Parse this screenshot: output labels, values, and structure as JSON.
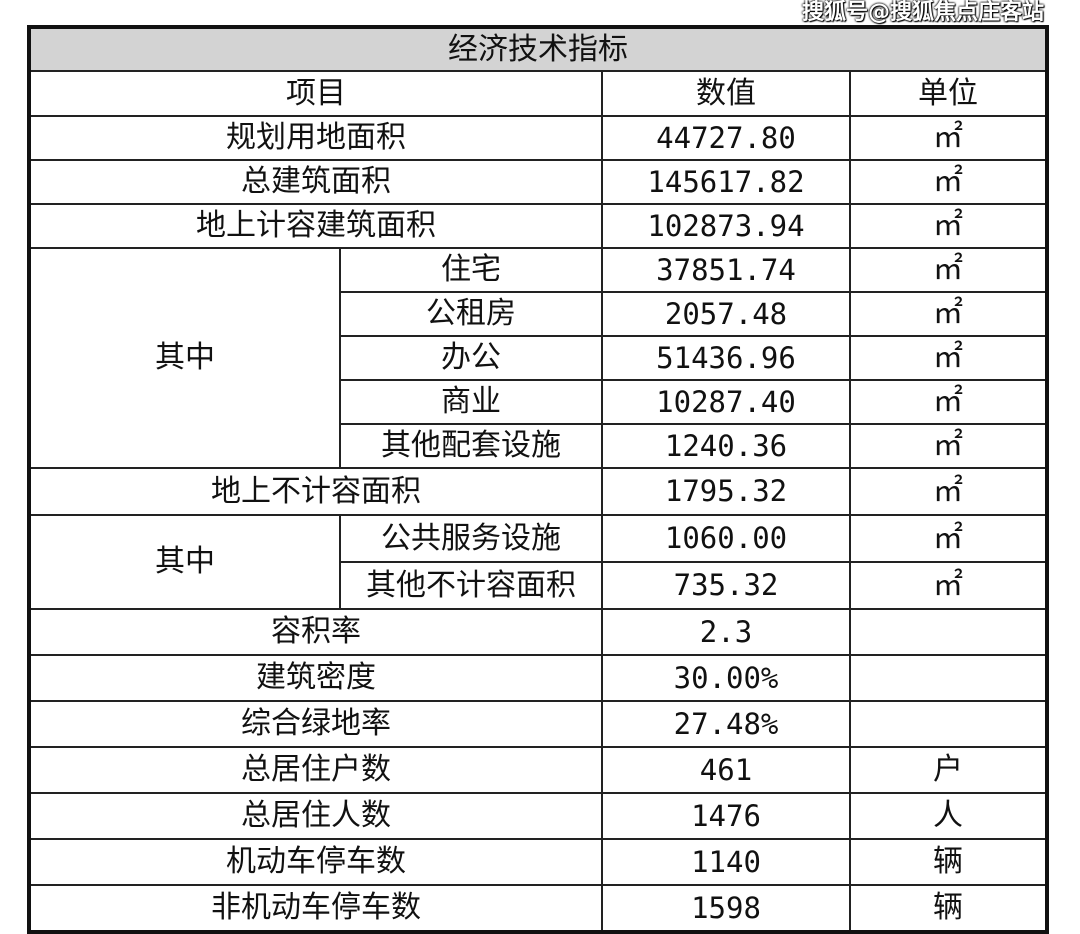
{
  "title": "经济技术指标",
  "headers": {
    "item": "项目",
    "value": "数值",
    "unit": "单位"
  },
  "rows_top": [
    {
      "item": "规划用地面积",
      "value": "44727.80",
      "unit": "㎡"
    },
    {
      "item": "总建筑面积",
      "value": "145617.82",
      "unit": "㎡"
    },
    {
      "item": "地上计容建筑面积",
      "value": "102873.94",
      "unit": "㎡"
    }
  ],
  "group1": {
    "label": "其中",
    "rows": [
      {
        "item": "住宅",
        "value": "37851.74",
        "unit": "㎡"
      },
      {
        "item": "公租房",
        "value": "2057.48",
        "unit": "㎡"
      },
      {
        "item": "办公",
        "value": "51436.96",
        "unit": "㎡"
      },
      {
        "item": "商业",
        "value": "10287.40",
        "unit": "㎡"
      },
      {
        "item": "其他配套设施",
        "value": "1240.36",
        "unit": "㎡"
      }
    ]
  },
  "row_mid": {
    "item": "地上不计容面积",
    "value": "1795.32",
    "unit": "㎡"
  },
  "group2": {
    "label": "其中",
    "rows": [
      {
        "item": "公共服务设施",
        "value": "1060.00",
        "unit": "㎡"
      },
      {
        "item": "其他不计容面积",
        "value": "735.32",
        "unit": "㎡"
      }
    ]
  },
  "rows_bottom": [
    {
      "item": "容积率",
      "value": "2.3",
      "unit": ""
    },
    {
      "item": "建筑密度",
      "value": "30.00%",
      "unit": ""
    },
    {
      "item": "综合绿地率",
      "value": "27.48%",
      "unit": ""
    },
    {
      "item": "总居住户数",
      "value": "461",
      "unit": "户"
    },
    {
      "item": "总居住人数",
      "value": "1476",
      "unit": "人"
    },
    {
      "item": "机动车停车数",
      "value": "1140",
      "unit": "辆"
    },
    {
      "item": "非机动车停车数",
      "value": "1598",
      "unit": "辆"
    }
  ],
  "watermark": "搜狐号@搜狐焦点庄客站",
  "colors": {
    "title_bg": "#d3d3d3",
    "border": "#111111"
  }
}
